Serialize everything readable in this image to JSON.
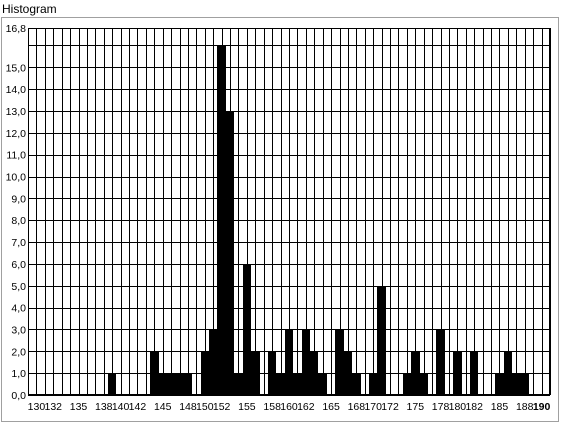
{
  "chart_data": {
    "type": "bar",
    "title": "Histogram",
    "xlabel": "",
    "ylabel": "",
    "xlim": [
      129,
      191
    ],
    "ylim": [
      0,
      16.8
    ],
    "grid": true,
    "bar_color": "#000000",
    "y_ticks": [
      "0,0",
      "1,0",
      "2,0",
      "3,0",
      "4,0",
      "5,0",
      "6,0",
      "7,0",
      "8,0",
      "9,0",
      "10,0",
      "11,0",
      "12,0",
      "13,0",
      "14,0",
      "15,0",
      "16,8"
    ],
    "x_ticks": [
      "130",
      "132",
      "135",
      "138",
      "140",
      "142",
      "145",
      "148",
      "150",
      "152",
      "155",
      "158",
      "160",
      "162",
      "165",
      "168",
      "170",
      "172",
      "175",
      "178",
      "180",
      "182",
      "185",
      "188",
      "190"
    ],
    "x_tick_values": [
      130,
      132,
      135,
      138,
      140,
      142,
      145,
      148,
      150,
      152,
      155,
      158,
      160,
      162,
      165,
      168,
      170,
      172,
      175,
      178,
      180,
      182,
      185,
      188,
      190
    ],
    "bins": [
      {
        "x": 139,
        "count": 1
      },
      {
        "x": 144,
        "count": 2
      },
      {
        "x": 145,
        "count": 1
      },
      {
        "x": 146,
        "count": 1
      },
      {
        "x": 147,
        "count": 1
      },
      {
        "x": 148,
        "count": 1
      },
      {
        "x": 150,
        "count": 2
      },
      {
        "x": 151,
        "count": 3
      },
      {
        "x": 152,
        "count": 16
      },
      {
        "x": 153,
        "count": 13
      },
      {
        "x": 154,
        "count": 1
      },
      {
        "x": 155,
        "count": 6
      },
      {
        "x": 156,
        "count": 2
      },
      {
        "x": 158,
        "count": 2
      },
      {
        "x": 159,
        "count": 1
      },
      {
        "x": 160,
        "count": 3
      },
      {
        "x": 161,
        "count": 1
      },
      {
        "x": 162,
        "count": 3
      },
      {
        "x": 163,
        "count": 2
      },
      {
        "x": 164,
        "count": 1
      },
      {
        "x": 166,
        "count": 3
      },
      {
        "x": 167,
        "count": 2
      },
      {
        "x": 168,
        "count": 1
      },
      {
        "x": 170,
        "count": 1
      },
      {
        "x": 171,
        "count": 5
      },
      {
        "x": 174,
        "count": 1
      },
      {
        "x": 175,
        "count": 2
      },
      {
        "x": 176,
        "count": 1
      },
      {
        "x": 178,
        "count": 3
      },
      {
        "x": 180,
        "count": 2
      },
      {
        "x": 182,
        "count": 2
      },
      {
        "x": 185,
        "count": 1
      },
      {
        "x": 186,
        "count": 2
      },
      {
        "x": 187,
        "count": 1
      },
      {
        "x": 188,
        "count": 1
      }
    ]
  }
}
